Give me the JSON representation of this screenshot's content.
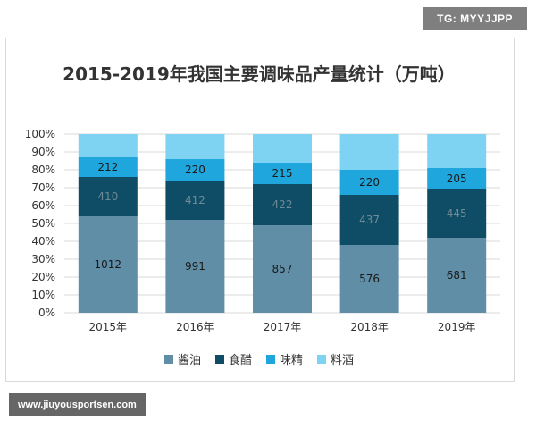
{
  "watermark_top": "TG: MYYJJPP",
  "watermark_bottom": "www.jiuyousportsen.com",
  "chart_data": {
    "type": "bar",
    "stacked": true,
    "percent_stacked": true,
    "title": "2015-2019年我国主要调味品产量统计（万吨）",
    "categories": [
      "2015年",
      "2016年",
      "2017年",
      "2018年",
      "2019年"
    ],
    "y_ticks": [
      "0%",
      "10%",
      "20%",
      "30%",
      "40%",
      "50%",
      "60%",
      "70%",
      "80%",
      "90%",
      "100%"
    ],
    "ylim": [
      0,
      100
    ],
    "grid": true,
    "legend_position": "bottom",
    "series": [
      {
        "name": "酱油",
        "color": "#5f8ea6",
        "label_color": "#1a1a1a",
        "values": [
          54,
          52,
          49,
          38,
          42
        ],
        "labels": [
          "1012",
          "991",
          "857",
          "576",
          "681"
        ]
      },
      {
        "name": "食醋",
        "color": "#0f4d66",
        "label_color": "#6e8a96",
        "values": [
          22,
          22,
          23,
          28,
          27
        ],
        "labels": [
          "410",
          "412",
          "422",
          "437",
          "445"
        ]
      },
      {
        "name": "味精",
        "color": "#1fa6dc",
        "label_color": "#1a1a1a",
        "values": [
          11,
          12,
          12,
          14,
          12
        ],
        "labels": [
          "212",
          "220",
          "215",
          "220",
          "205"
        ]
      },
      {
        "name": "料酒",
        "color": "#7fd3f2",
        "label_color": "#1a1a1a",
        "values": [
          13,
          14,
          16,
          20,
          19
        ],
        "labels": [
          "",
          "",
          "",
          "",
          ""
        ]
      }
    ]
  }
}
